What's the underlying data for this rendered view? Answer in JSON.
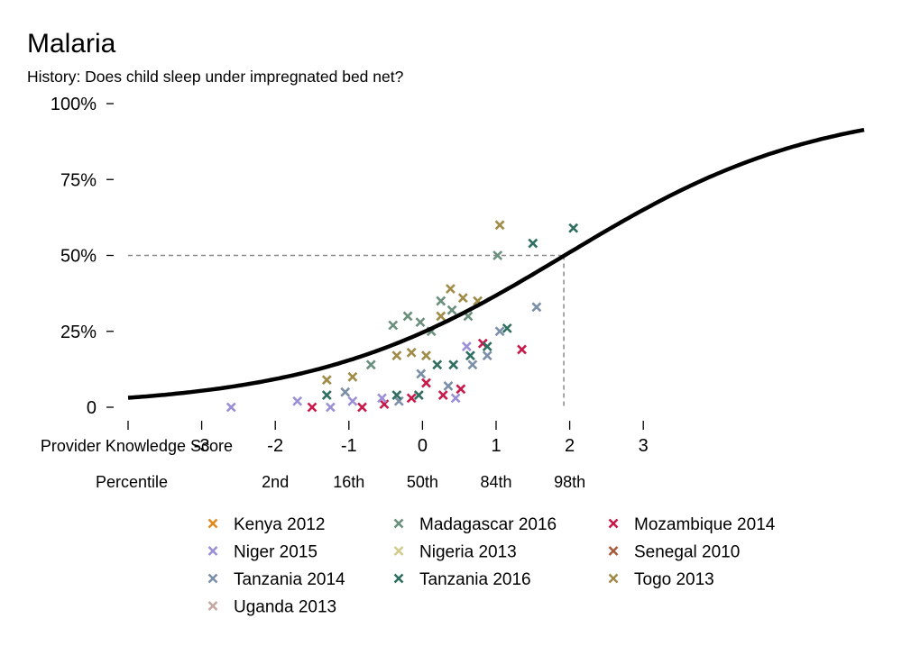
{
  "chart_data": {
    "type": "scatter",
    "title": "Malaria",
    "subtitle": "History: Does child sleep under impregnated bed net?",
    "xlabel": "Provider Knowledge Score",
    "percentile_label": "Percentile",
    "xlim": [
      -4,
      6
    ],
    "ylim": [
      0,
      1
    ],
    "x_ticks": [
      -4,
      -3,
      -2,
      -1,
      0,
      1,
      2,
      3
    ],
    "x_tick_labels": [
      "",
      "-3",
      "-2",
      "-1",
      "0",
      "1",
      "2",
      "3"
    ],
    "y_ticks": [
      0,
      0.25,
      0.5,
      0.75,
      1
    ],
    "y_tick_labels": [
      "0",
      "25%",
      "50%",
      "75%",
      "100%"
    ],
    "percentiles": [
      {
        "x": -2,
        "label": "2nd"
      },
      {
        "x": -1,
        "label": "16th"
      },
      {
        "x": 0,
        "label": "50th"
      },
      {
        "x": 1,
        "label": "84th"
      },
      {
        "x": 2,
        "label": "98th"
      }
    ],
    "reference": {
      "x": 1.92,
      "y": 0.5
    },
    "curve": {
      "a": -1.12,
      "b": 0.58
    },
    "legend_position": "bottom",
    "series": [
      {
        "name": "Kenya 2012",
        "color": "#e08a1e",
        "points": []
      },
      {
        "name": "Madagascar 2016",
        "color": "#6b8f7d",
        "points": [
          [
            -0.7,
            0.14
          ],
          [
            -0.4,
            0.27
          ],
          [
            -0.2,
            0.3
          ],
          [
            -0.03,
            0.28
          ],
          [
            0.12,
            0.25
          ],
          [
            0.25,
            0.35
          ],
          [
            0.4,
            0.32
          ],
          [
            0.62,
            0.3
          ],
          [
            1.02,
            0.5
          ]
        ]
      },
      {
        "name": "Mozambique 2014",
        "color": "#c8194a",
        "points": [
          [
            -1.5,
            0.0
          ],
          [
            -0.82,
            0.0
          ],
          [
            -0.52,
            0.01
          ],
          [
            -0.15,
            0.03
          ],
          [
            0.05,
            0.08
          ],
          [
            0.28,
            0.04
          ],
          [
            0.52,
            0.06
          ],
          [
            0.82,
            0.21
          ],
          [
            1.35,
            0.19
          ]
        ]
      },
      {
        "name": "Niger 2015",
        "color": "#9b8fd6",
        "points": [
          [
            -2.6,
            0.0
          ],
          [
            -1.7,
            0.02
          ],
          [
            -1.25,
            0.0
          ],
          [
            -0.95,
            0.02
          ],
          [
            -0.55,
            0.03
          ],
          [
            0.45,
            0.03
          ],
          [
            0.6,
            0.2
          ]
        ]
      },
      {
        "name": "Nigeria 2013",
        "color": "#d4cb8e",
        "points": []
      },
      {
        "name": "Senegal 2010",
        "color": "#a85a3c",
        "points": []
      },
      {
        "name": "Tanzania 2014",
        "color": "#7c8fa8",
        "points": [
          [
            -1.05,
            0.05
          ],
          [
            -0.32,
            0.02
          ],
          [
            -0.02,
            0.11
          ],
          [
            0.35,
            0.07
          ],
          [
            0.68,
            0.14
          ],
          [
            0.88,
            0.17
          ],
          [
            1.05,
            0.25
          ],
          [
            1.55,
            0.33
          ]
        ]
      },
      {
        "name": "Tanzania 2016",
        "color": "#2f6e61",
        "points": [
          [
            -1.3,
            0.04
          ],
          [
            -0.35,
            0.04
          ],
          [
            -0.05,
            0.04
          ],
          [
            0.2,
            0.14
          ],
          [
            0.42,
            0.14
          ],
          [
            0.65,
            0.17
          ],
          [
            0.88,
            0.2
          ],
          [
            1.15,
            0.26
          ],
          [
            1.5,
            0.54
          ],
          [
            2.05,
            0.59
          ]
        ]
      },
      {
        "name": "Togo 2013",
        "color": "#a08c48",
        "points": [
          [
            -1.3,
            0.09
          ],
          [
            -0.95,
            0.1
          ],
          [
            -0.35,
            0.17
          ],
          [
            -0.15,
            0.18
          ],
          [
            0.05,
            0.17
          ],
          [
            0.25,
            0.3
          ],
          [
            0.38,
            0.39
          ],
          [
            0.55,
            0.36
          ],
          [
            0.75,
            0.35
          ],
          [
            1.05,
            0.6
          ]
        ]
      },
      {
        "name": "Uganda 2013",
        "color": "#c4a8a0",
        "points": []
      }
    ]
  }
}
